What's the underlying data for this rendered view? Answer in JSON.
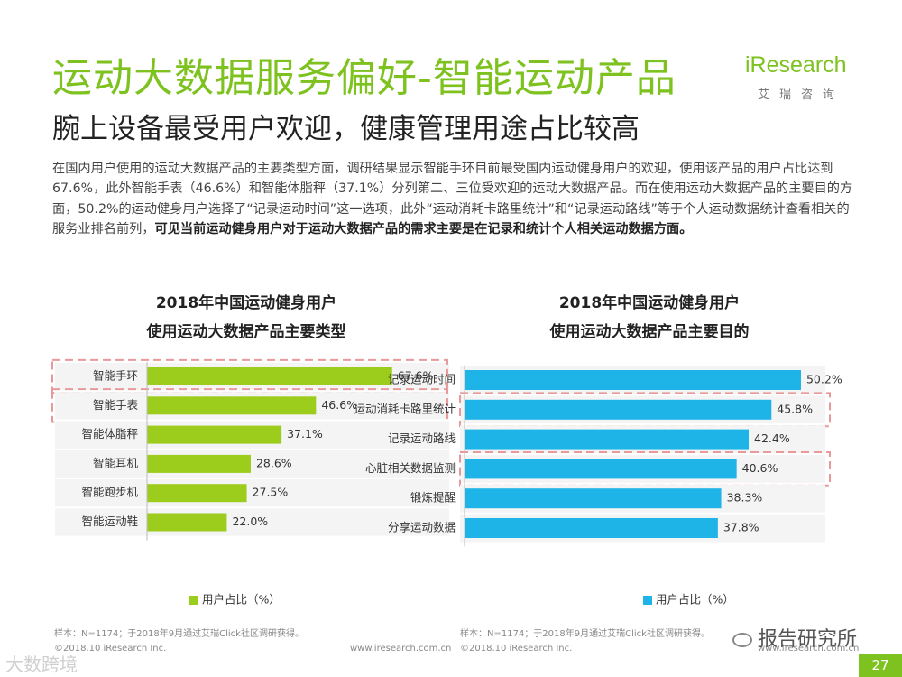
{
  "header": {
    "title": "运动大数据服务偏好-智能运动产品",
    "subtitle": "腕上设备最受用户欢迎，健康管理用途占比较高"
  },
  "logo": {
    "name": "iResearch",
    "sub": "艾瑞咨询"
  },
  "body": {
    "text": "在国内用户使用的运动大数据产品的主要类型方面，调研结果显示智能手环目前最受国内运动健身用户的欢迎，使用该产品的用户占比达到67.6%，此外智能手表（46.6%）和智能体脂秤（37.1%）分列第二、三位受欢迎的运动大数据产品。而在使用运动大数据产品的主要目的方面，50.2%的运动健身用户选择了“记录运动时间”这一选项，此外“运动消耗卡路里统计”和“记录运动路线”等于个人运动数据统计查看相关的服务业排名前列，",
    "bold_text": "可见当前运动健身用户对于运动大数据产品的需求主要是在记录和统计个人相关运动数据方面。"
  },
  "colors": {
    "accent": "#7dc21e",
    "bar_green": "#9ccc1c",
    "bar_blue": "#1fb4e8",
    "highlight": "#e89a9a"
  },
  "chart_data": [
    {
      "type": "bar",
      "orientation": "horizontal",
      "title": [
        "2018年中国运动健身用户",
        "使用运动大数据产品主要类型"
      ],
      "categories": [
        "智能手环",
        "智能手表",
        "智能体脂秤",
        "智能耳机",
        "智能跑步机",
        "智能运动鞋"
      ],
      "values": [
        67.6,
        46.6,
        37.1,
        28.6,
        27.5,
        22.0
      ],
      "value_labels": [
        "67.6%",
        "46.6%",
        "37.1%",
        "28.6%",
        "27.5%",
        "22.0%"
      ],
      "legend": "用户占比（%）",
      "xlim": [
        0,
        100
      ],
      "highlighted": [
        "智能手环",
        "智能手表"
      ],
      "note": "样本：N=1174；于2018年9月通过艾瑞Click社区调研获得。"
    },
    {
      "type": "bar",
      "orientation": "horizontal",
      "title": [
        "2018年中国运动健身用户",
        "使用运动大数据产品主要目的"
      ],
      "categories": [
        "记录运动时间",
        "运动消耗卡路里统计",
        "记录运动路线",
        "心脏相关数据监测",
        "锻炼提醒",
        "分享运动数据"
      ],
      "values": [
        50.2,
        45.8,
        42.4,
        40.6,
        38.3,
        37.8
      ],
      "value_labels": [
        "50.2%",
        "45.8%",
        "42.4%",
        "40.6%",
        "38.3%",
        "37.8%"
      ],
      "legend": "用户占比（%）",
      "xlim": [
        0,
        100
      ],
      "highlighted": [
        "运动消耗卡路里统计",
        "心脏相关数据监测"
      ],
      "note": "样本：N=1174；于2018年9月通过艾瑞Click社区调研获得。"
    }
  ],
  "footer": {
    "copyright": "©2018.10 iResearch Inc.",
    "website": "www.iresearch.com.cn",
    "page": "27"
  },
  "watermarks": {
    "left": "大数跨境",
    "right": "报告研究所"
  }
}
